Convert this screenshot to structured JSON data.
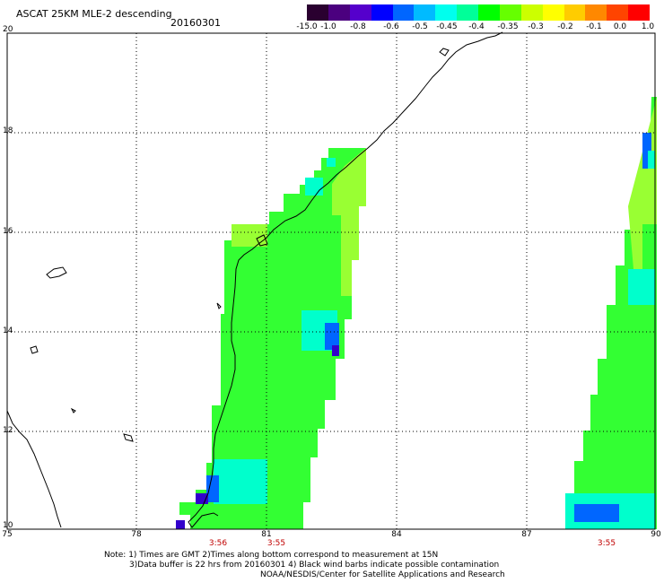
{
  "header": {
    "title": "ASCAT 25KM MLE-2 descending",
    "date": "20160301"
  },
  "colorbar": {
    "labels": [
      "-15.0",
      "-1.0",
      "-0.8",
      "-0.6",
      "-0.5",
      "-0.45",
      "-0.4",
      "-0.35",
      "-0.3",
      "-0.2",
      "-0.1",
      "0.0",
      "1.0"
    ],
    "colors": [
      "#2a0030",
      "#4b007f",
      "#5500cc",
      "#0000ff",
      "#0066ff",
      "#00bbff",
      "#00ffee",
      "#00ff99",
      "#00ff00",
      "#66ff00",
      "#ccff00",
      "#ffff00",
      "#ffcc00",
      "#ff8800",
      "#ff4400",
      "#ff0000"
    ]
  },
  "axes": {
    "y_labels": [
      "20",
      "18",
      "16",
      "14",
      "12",
      "10"
    ],
    "x_labels": [
      "75",
      "78",
      "81",
      "84",
      "87",
      "90"
    ]
  },
  "times": [
    "3:56",
    "3:55",
    "3:55"
  ],
  "notes": {
    "line1": "Note: 1) Times are GMT 2)Times along bottom correspond to measurement at 15N",
    "line2": "3)Data buffer is 22 hrs from 20160301 4) Black wind barbs indicate possible contamination",
    "line3": "NOAA/NESDIS/Center for Satellite Applications and Research"
  },
  "map": {
    "swaths": [
      {
        "name": "central-swath",
        "dominant_color": "#33ff33",
        "edge_color": "#99ff33",
        "anomaly_colors": [
          "#00ffcc",
          "#0066ff",
          "#3300cc"
        ]
      },
      {
        "name": "east-swath",
        "dominant_color": "#33ff33",
        "edge_color": "#99ff33",
        "anomaly_colors": [
          "#00ffcc",
          "#0066ff"
        ]
      }
    ],
    "coastline_color": "#000000",
    "grid_color": "#000000"
  }
}
